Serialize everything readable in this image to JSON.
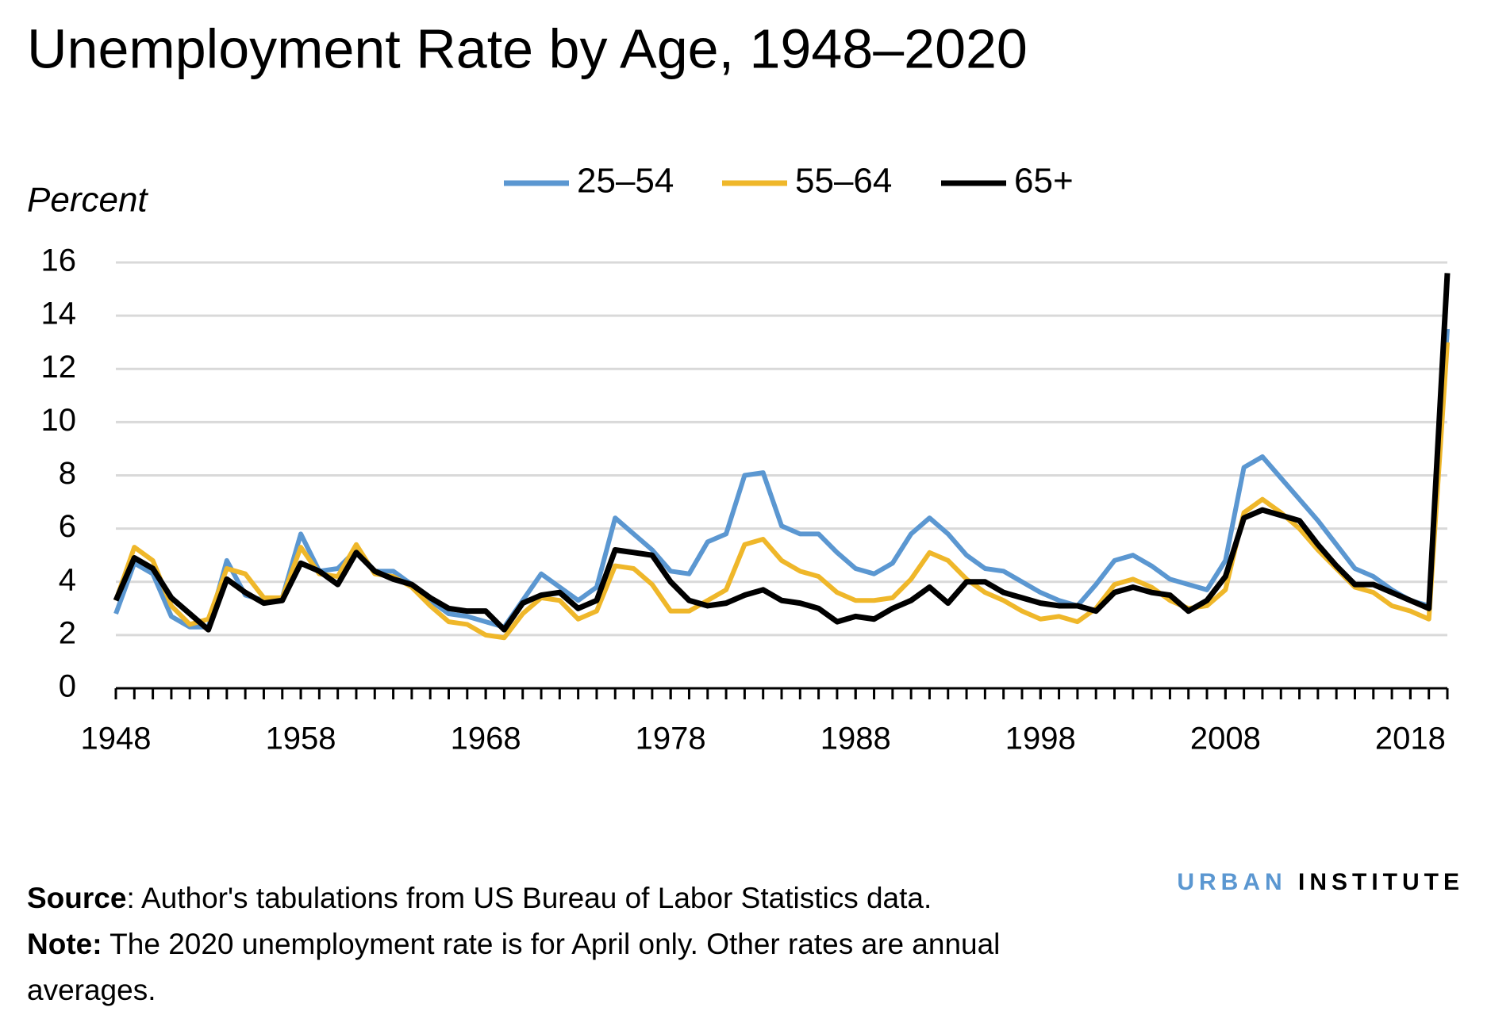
{
  "chart_data": {
    "type": "line",
    "title": "Unemployment Rate by Age, 1948–2020",
    "y_label": "Percent",
    "x": [
      1948,
      1949,
      1950,
      1951,
      1952,
      1953,
      1954,
      1955,
      1956,
      1957,
      1958,
      1959,
      1960,
      1961,
      1962,
      1963,
      1964,
      1965,
      1966,
      1967,
      1968,
      1969,
      1970,
      1971,
      1972,
      1973,
      1974,
      1975,
      1976,
      1977,
      1978,
      1979,
      1980,
      1981,
      1982,
      1983,
      1984,
      1985,
      1986,
      1987,
      1988,
      1989,
      1990,
      1991,
      1992,
      1993,
      1994,
      1995,
      1996,
      1997,
      1998,
      1999,
      2000,
      2001,
      2002,
      2003,
      2004,
      2005,
      2006,
      2007,
      2008,
      2009,
      2010,
      2011,
      2012,
      2013,
      2014,
      2015,
      2016,
      2017,
      2018,
      2019,
      2020
    ],
    "series": [
      {
        "name": "25–54",
        "color": "#5b97d1",
        "values": [
          2.8,
          4.7,
          4.3,
          2.7,
          2.3,
          2.3,
          4.8,
          3.5,
          3.3,
          3.4,
          5.8,
          4.4,
          4.5,
          5.2,
          4.4,
          4.4,
          3.9,
          3.3,
          2.8,
          2.7,
          2.5,
          2.3,
          3.3,
          4.3,
          3.8,
          3.3,
          3.8,
          6.4,
          5.8,
          5.2,
          4.4,
          4.3,
          5.5,
          5.8,
          8.0,
          8.1,
          6.1,
          5.8,
          5.8,
          5.1,
          4.5,
          4.3,
          4.7,
          5.8,
          6.4,
          5.8,
          5.0,
          4.5,
          4.4,
          4.0,
          3.6,
          3.3,
          3.1,
          3.9,
          4.8,
          5.0,
          4.6,
          4.1,
          3.9,
          3.7,
          4.8,
          8.3,
          8.7,
          7.9,
          7.1,
          6.3,
          5.4,
          4.5,
          4.2,
          3.7,
          3.3,
          3.1,
          13.5
        ]
      },
      {
        "name": "55–64",
        "color": "#efb72a",
        "values": [
          3.3,
          5.3,
          4.8,
          3.1,
          2.4,
          2.6,
          4.5,
          4.3,
          3.4,
          3.4,
          5.3,
          4.3,
          4.2,
          5.4,
          4.3,
          4.2,
          3.8,
          3.1,
          2.5,
          2.4,
          2.0,
          1.9,
          2.8,
          3.4,
          3.3,
          2.6,
          2.9,
          4.6,
          4.5,
          3.9,
          2.9,
          2.9,
          3.3,
          3.7,
          5.4,
          5.6,
          4.8,
          4.4,
          4.2,
          3.6,
          3.3,
          3.3,
          3.4,
          4.1,
          5.1,
          4.8,
          4.1,
          3.6,
          3.3,
          2.9,
          2.6,
          2.7,
          2.5,
          3.0,
          3.9,
          4.1,
          3.8,
          3.3,
          3.0,
          3.1,
          3.7,
          6.6,
          7.1,
          6.6,
          6.0,
          5.2,
          4.5,
          3.8,
          3.6,
          3.1,
          2.9,
          2.6,
          13.0
        ]
      },
      {
        "name": "65+",
        "color": "#000000",
        "values": [
          3.3,
          4.9,
          4.5,
          3.4,
          2.8,
          2.2,
          4.1,
          3.6,
          3.2,
          3.3,
          4.7,
          4.4,
          3.9,
          5.1,
          4.4,
          4.1,
          3.9,
          3.4,
          3.0,
          2.9,
          2.9,
          2.2,
          3.2,
          3.5,
          3.6,
          3.0,
          3.3,
          5.2,
          5.1,
          5.0,
          4.0,
          3.3,
          3.1,
          3.2,
          3.5,
          3.7,
          3.3,
          3.2,
          3.0,
          2.5,
          2.7,
          2.6,
          3.0,
          3.3,
          3.8,
          3.2,
          4.0,
          4.0,
          3.6,
          3.4,
          3.2,
          3.1,
          3.1,
          2.9,
          3.6,
          3.8,
          3.6,
          3.5,
          2.9,
          3.3,
          4.2,
          6.4,
          6.7,
          6.5,
          6.3,
          5.4,
          4.6,
          3.9,
          3.9,
          3.6,
          3.3,
          3.0,
          15.6
        ]
      }
    ],
    "xlim": [
      1948,
      2020
    ],
    "xticks": [
      1948,
      1958,
      1968,
      1978,
      1988,
      1998,
      2008,
      2018
    ],
    "ylim": [
      0,
      16
    ],
    "yticks": [
      0,
      2,
      4,
      6,
      8,
      10,
      12,
      14,
      16
    ],
    "grid": true,
    "legend": "top"
  },
  "footer": {
    "source_label": "Source",
    "source": ": Author's tabulations from US Bureau of Labor Statistics data.",
    "note_label": "Note:",
    "note": " The 2020 unemployment rate is for April only. Other rates are annual averages."
  },
  "brand": {
    "first": "URBAN",
    "second": "INSTITUTE"
  }
}
